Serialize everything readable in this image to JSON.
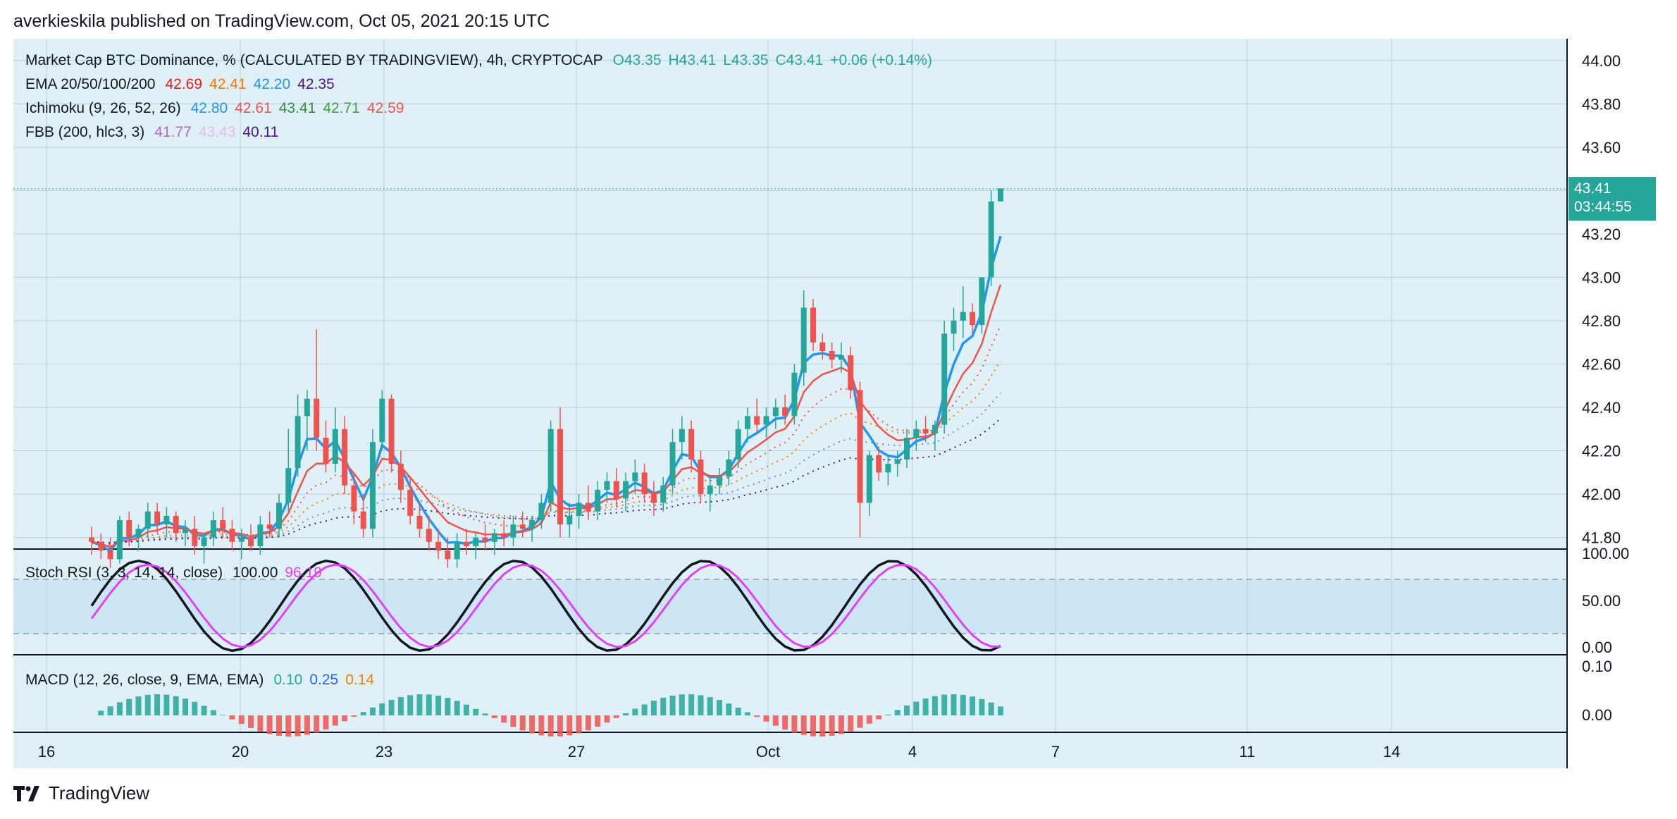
{
  "header": {
    "publisher": "averkieskila published on TradingView.com, Oct 05, 2021 20:15 UTC"
  },
  "brand": {
    "name": "TradingView"
  },
  "colors": {
    "bg": "#dff0f7",
    "up": "#26a69a",
    "down": "#ef5350",
    "grid": "#b8cfd8"
  },
  "legends": {
    "main": {
      "title": "Market Cap BTC Dominance, % (CALCULATED BY TRADINGVIEW), 4h, CRYPTOCAP",
      "o": "O43.35",
      "h": "H43.41",
      "l": "L43.35",
      "c": "C43.41",
      "chg": "+0.06 (+0.14%)"
    },
    "ema": {
      "title": "EMA 20/50/100/200",
      "v1": "42.69",
      "v2": "42.41",
      "v3": "42.20",
      "v4": "42.35"
    },
    "ichimoku": {
      "title": "Ichimoku (9, 26, 52, 26)",
      "v1": "42.80",
      "v2": "42.61",
      "v3": "43.41",
      "v4": "42.71",
      "v5": "42.59"
    },
    "fbb": {
      "title": "FBB (200, hlc3, 3)",
      "v1": "41.77",
      "v2": "43.43",
      "v3": "40.11"
    },
    "stoch": {
      "title": "Stoch RSI (3, 3, 14, 14, close)",
      "v1": "100.00",
      "v2": "96.19"
    },
    "macd": {
      "title": "MACD (12, 26, close, 9, EMA, EMA)",
      "v1": "0.10",
      "v2": "0.25",
      "v3": "0.14"
    }
  },
  "price_tag": {
    "price": "43.41",
    "countdown": "03:44:55"
  },
  "chart_data": {
    "type": "candlestick",
    "y_ticks": [
      "44.00",
      "43.80",
      "43.60",
      "43.40",
      "43.20",
      "43.00",
      "42.80",
      "42.60",
      "42.40",
      "42.20",
      "42.00",
      "41.80"
    ],
    "x_ticks": [
      "16",
      "20",
      "23",
      "27",
      "Oct",
      "4",
      "7",
      "11",
      "14"
    ],
    "stoch_ticks": [
      "100.00",
      "50.00",
      "0.00"
    ],
    "macd_ticks": [
      "0.10",
      "0.00"
    ],
    "ylim": [
      41.75,
      44.1
    ],
    "candles": [
      [
        41.8,
        41.85,
        41.72,
        41.78
      ],
      [
        41.78,
        41.82,
        41.7,
        41.74
      ],
      [
        41.74,
        41.8,
        41.66,
        41.7
      ],
      [
        41.7,
        41.9,
        41.68,
        41.88
      ],
      [
        41.88,
        41.92,
        41.76,
        41.8
      ],
      [
        41.8,
        41.86,
        41.74,
        41.84
      ],
      [
        41.84,
        41.96,
        41.8,
        41.92
      ],
      [
        41.92,
        41.96,
        41.82,
        41.86
      ],
      [
        41.86,
        41.94,
        41.8,
        41.9
      ],
      [
        41.9,
        41.92,
        41.78,
        41.82
      ],
      [
        41.82,
        41.88,
        41.76,
        41.84
      ],
      [
        41.84,
        41.9,
        41.72,
        41.76
      ],
      [
        41.76,
        41.82,
        41.68,
        41.8
      ],
      [
        41.8,
        41.92,
        41.76,
        41.88
      ],
      [
        41.88,
        41.94,
        41.8,
        41.84
      ],
      [
        41.84,
        41.88,
        41.74,
        41.78
      ],
      [
        41.78,
        41.84,
        41.7,
        41.8
      ],
      [
        41.8,
        41.86,
        41.74,
        41.76
      ],
      [
        41.76,
        41.9,
        41.72,
        41.86
      ],
      [
        41.86,
        41.92,
        41.8,
        41.84
      ],
      [
        41.84,
        42.0,
        41.8,
        41.96
      ],
      [
        41.96,
        42.3,
        41.92,
        42.12
      ],
      [
        42.12,
        42.46,
        42.08,
        42.36
      ],
      [
        42.36,
        42.48,
        42.2,
        42.44
      ],
      [
        42.44,
        42.76,
        42.2,
        42.26
      ],
      [
        42.26,
        42.34,
        42.1,
        42.14
      ],
      [
        42.14,
        42.4,
        42.1,
        42.3
      ],
      [
        42.3,
        42.36,
        42.0,
        42.04
      ],
      [
        42.04,
        42.1,
        41.86,
        41.92
      ],
      [
        41.92,
        42.0,
        41.8,
        41.84
      ],
      [
        41.84,
        42.3,
        41.8,
        42.24
      ],
      [
        42.24,
        42.48,
        42.2,
        42.44
      ],
      [
        42.44,
        42.46,
        42.1,
        42.14
      ],
      [
        42.14,
        42.2,
        41.96,
        42.02
      ],
      [
        42.02,
        42.08,
        41.86,
        41.9
      ],
      [
        41.9,
        41.96,
        41.8,
        41.84
      ],
      [
        41.84,
        41.9,
        41.74,
        41.78
      ],
      [
        41.78,
        41.84,
        41.7,
        41.74
      ],
      [
        41.74,
        41.8,
        41.66,
        41.7
      ],
      [
        41.7,
        41.82,
        41.66,
        41.78
      ],
      [
        41.78,
        41.84,
        41.72,
        41.76
      ],
      [
        41.76,
        41.82,
        41.7,
        41.8
      ],
      [
        41.8,
        41.86,
        41.74,
        41.78
      ],
      [
        41.78,
        41.84,
        41.72,
        41.82
      ],
      [
        41.82,
        41.88,
        41.76,
        41.8
      ],
      [
        41.8,
        41.9,
        41.76,
        41.86
      ],
      [
        41.86,
        41.92,
        41.8,
        41.84
      ],
      [
        41.84,
        41.9,
        41.78,
        41.88
      ],
      [
        41.88,
        42.0,
        41.84,
        41.96
      ],
      [
        41.96,
        42.34,
        41.92,
        42.3
      ],
      [
        42.3,
        42.4,
        41.8,
        41.86
      ],
      [
        41.86,
        41.96,
        41.8,
        41.9
      ],
      [
        41.9,
        42.0,
        41.84,
        41.96
      ],
      [
        41.96,
        42.04,
        41.88,
        41.92
      ],
      [
        41.92,
        42.06,
        41.88,
        42.02
      ],
      [
        42.02,
        42.1,
        41.96,
        42.06
      ],
      [
        42.06,
        42.12,
        41.94,
        41.98
      ],
      [
        41.98,
        42.1,
        41.92,
        42.06
      ],
      [
        42.06,
        42.16,
        42.0,
        42.1
      ],
      [
        42.1,
        42.14,
        41.96,
        42.0
      ],
      [
        42.0,
        42.06,
        41.9,
        41.96
      ],
      [
        41.96,
        42.08,
        41.92,
        42.04
      ],
      [
        42.04,
        42.3,
        42.0,
        42.24
      ],
      [
        42.24,
        42.36,
        42.16,
        42.3
      ],
      [
        42.3,
        42.34,
        42.1,
        42.16
      ],
      [
        42.16,
        42.2,
        41.96,
        42.0
      ],
      [
        42.0,
        42.08,
        41.92,
        42.04
      ],
      [
        42.04,
        42.12,
        42.0,
        42.08
      ],
      [
        42.08,
        42.2,
        42.04,
        42.16
      ],
      [
        42.16,
        42.34,
        42.12,
        42.3
      ],
      [
        42.3,
        42.4,
        42.24,
        42.36
      ],
      [
        42.36,
        42.44,
        42.28,
        42.32
      ],
      [
        42.32,
        42.4,
        42.26,
        42.36
      ],
      [
        42.36,
        42.44,
        42.3,
        42.4
      ],
      [
        42.4,
        42.46,
        42.32,
        42.36
      ],
      [
        42.36,
        42.6,
        42.32,
        42.56
      ],
      [
        42.56,
        42.94,
        42.5,
        42.86
      ],
      [
        42.86,
        42.9,
        42.66,
        42.7
      ],
      [
        42.7,
        42.74,
        42.62,
        42.66
      ],
      [
        42.66,
        42.7,
        42.58,
        42.62
      ],
      [
        42.62,
        42.7,
        42.56,
        42.64
      ],
      [
        42.64,
        42.68,
        42.44,
        42.48
      ],
      [
        42.48,
        42.52,
        41.8,
        41.96
      ],
      [
        41.96,
        42.2,
        41.9,
        42.18
      ],
      [
        42.18,
        42.22,
        42.06,
        42.1
      ],
      [
        42.1,
        42.18,
        42.04,
        42.14
      ],
      [
        42.14,
        42.2,
        42.08,
        42.16
      ],
      [
        42.16,
        42.3,
        42.12,
        42.26
      ],
      [
        42.26,
        42.34,
        42.2,
        42.3
      ],
      [
        42.3,
        42.36,
        42.24,
        42.28
      ],
      [
        42.28,
        42.34,
        42.2,
        42.32
      ],
      [
        42.32,
        42.8,
        42.28,
        42.74
      ],
      [
        42.74,
        42.86,
        42.66,
        42.8
      ],
      [
        42.8,
        42.96,
        42.72,
        42.84
      ],
      [
        42.84,
        42.88,
        42.74,
        42.78
      ],
      [
        42.78,
        43.0,
        42.74,
        43.0
      ],
      [
        43.0,
        43.4,
        42.96,
        43.35
      ],
      [
        43.35,
        43.41,
        43.35,
        43.41
      ]
    ]
  }
}
